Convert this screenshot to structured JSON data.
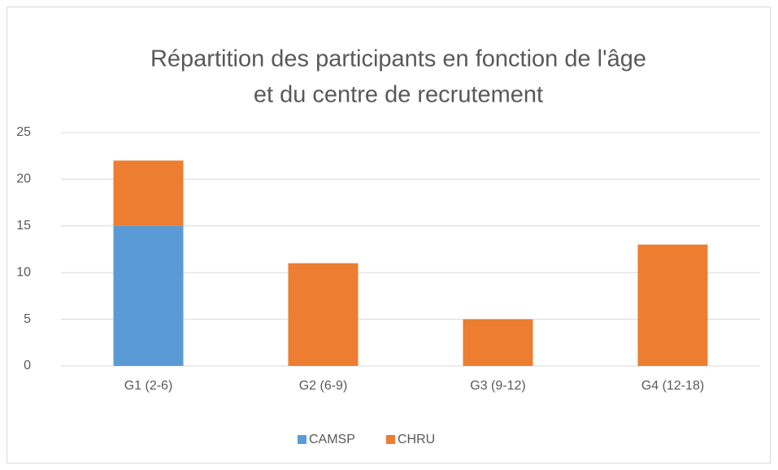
{
  "chart_data": {
    "type": "stacked_bar",
    "title": [
      "Répartition des participants en fonction de l'âge",
      "et du centre de recrutement"
    ],
    "categories": [
      "G1 (2-6)",
      "G2 (6-9)",
      "G3 (9-12)",
      "G4 (12-18)"
    ],
    "series": [
      {
        "name": "CAMSP",
        "color": "#5b9bd5",
        "values": [
          15,
          0,
          0,
          0
        ]
      },
      {
        "name": "CHRU",
        "color": "#ed7d31",
        "values": [
          7,
          11,
          5,
          13
        ]
      }
    ],
    "ylim": [
      0,
      25
    ],
    "yticks": [
      0,
      5,
      10,
      15,
      20,
      25
    ],
    "grid": true,
    "legend": "bottom"
  }
}
